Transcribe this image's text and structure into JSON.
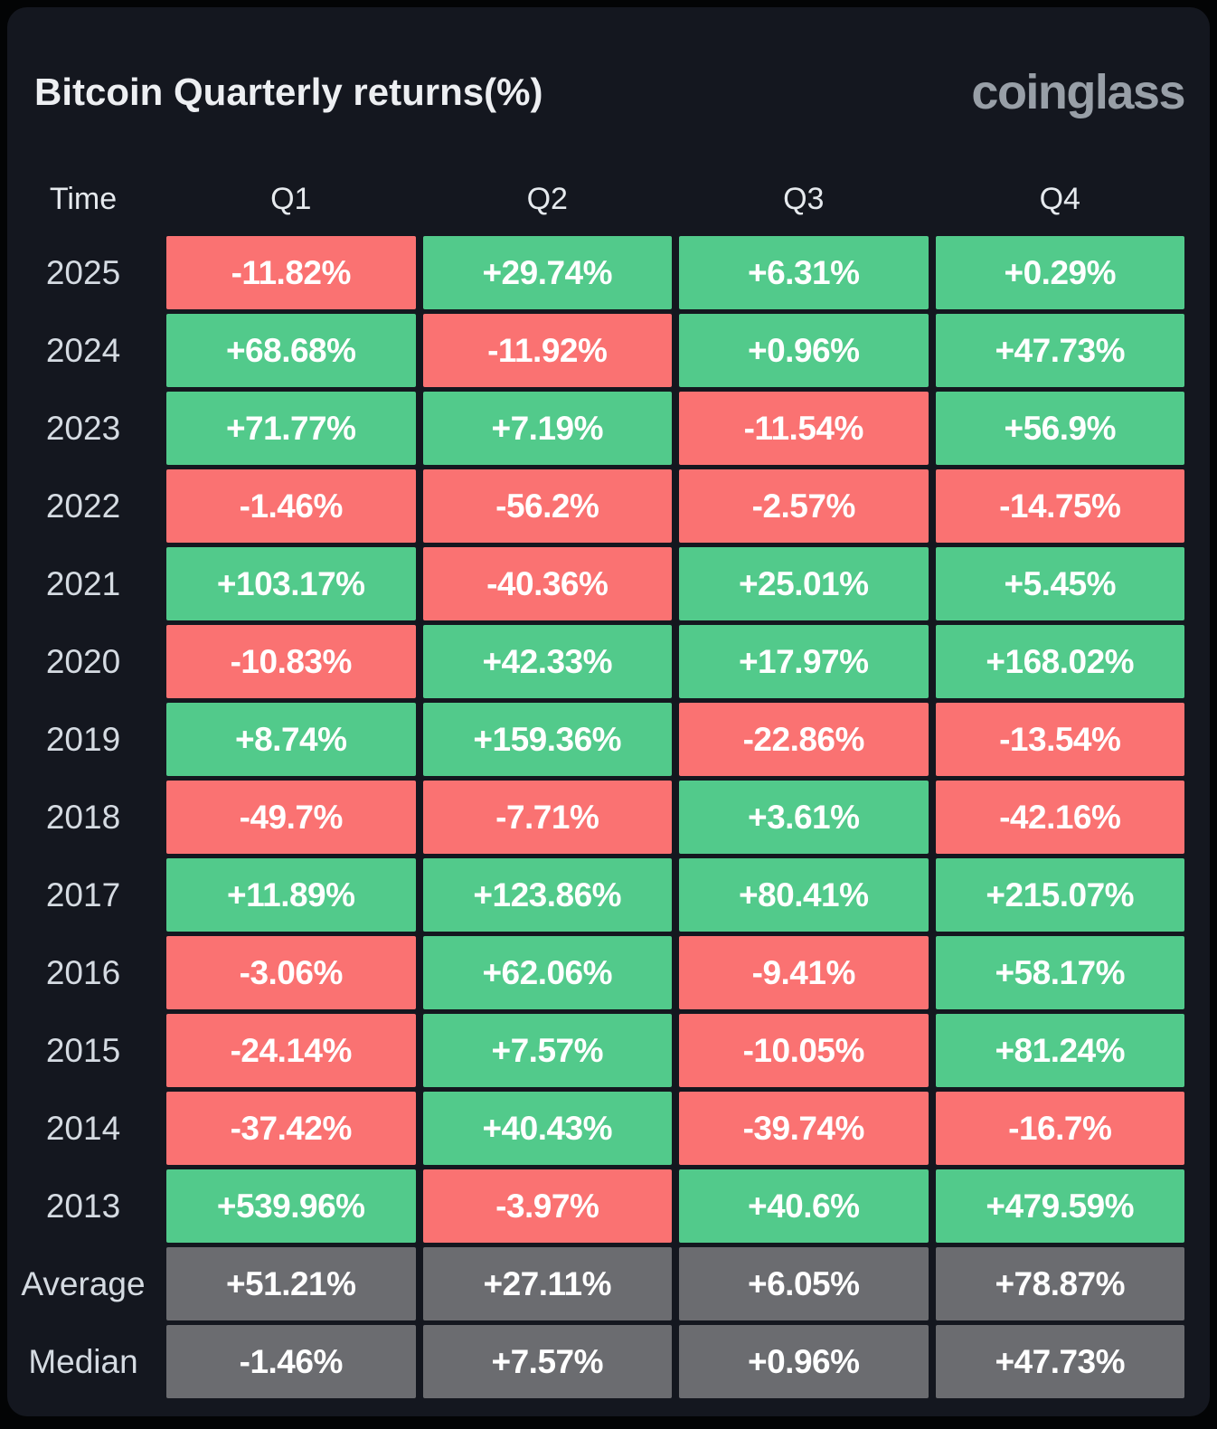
{
  "header": {
    "title": "Bitcoin Quarterly returns(%)",
    "logo": "coinglass"
  },
  "table": {
    "columns": [
      "Time",
      "Q1",
      "Q2",
      "Q3",
      "Q4"
    ],
    "rows": [
      {
        "label": "2025",
        "type": "year",
        "values": [
          "-11.82%",
          "+29.74%",
          "+6.31%",
          "+0.29%"
        ]
      },
      {
        "label": "2024",
        "type": "year",
        "values": [
          "+68.68%",
          "-11.92%",
          "+0.96%",
          "+47.73%"
        ]
      },
      {
        "label": "2023",
        "type": "year",
        "values": [
          "+71.77%",
          "+7.19%",
          "-11.54%",
          "+56.9%"
        ]
      },
      {
        "label": "2022",
        "type": "year",
        "values": [
          "-1.46%",
          "-56.2%",
          "-2.57%",
          "-14.75%"
        ]
      },
      {
        "label": "2021",
        "type": "year",
        "values": [
          "+103.17%",
          "-40.36%",
          "+25.01%",
          "+5.45%"
        ]
      },
      {
        "label": "2020",
        "type": "year",
        "values": [
          "-10.83%",
          "+42.33%",
          "+17.97%",
          "+168.02%"
        ]
      },
      {
        "label": "2019",
        "type": "year",
        "values": [
          "+8.74%",
          "+159.36%",
          "-22.86%",
          "-13.54%"
        ]
      },
      {
        "label": "2018",
        "type": "year",
        "values": [
          "-49.7%",
          "-7.71%",
          "+3.61%",
          "-42.16%"
        ]
      },
      {
        "label": "2017",
        "type": "year",
        "values": [
          "+11.89%",
          "+123.86%",
          "+80.41%",
          "+215.07%"
        ]
      },
      {
        "label": "2016",
        "type": "year",
        "values": [
          "-3.06%",
          "+62.06%",
          "-9.41%",
          "+58.17%"
        ]
      },
      {
        "label": "2015",
        "type": "year",
        "values": [
          "-24.14%",
          "+7.57%",
          "-10.05%",
          "+81.24%"
        ]
      },
      {
        "label": "2014",
        "type": "year",
        "values": [
          "-37.42%",
          "+40.43%",
          "-39.74%",
          "-16.7%"
        ]
      },
      {
        "label": "2013",
        "type": "year",
        "values": [
          "+539.96%",
          "-3.97%",
          "+40.6%",
          "+479.59%"
        ]
      },
      {
        "label": "Average",
        "type": "summary",
        "values": [
          "+51.21%",
          "+27.11%",
          "+6.05%",
          "+78.87%"
        ]
      },
      {
        "label": "Median",
        "type": "summary",
        "values": [
          "-1.46%",
          "+7.57%",
          "+0.96%",
          "+47.73%"
        ]
      }
    ]
  },
  "colors": {
    "positive": "#52ca8b",
    "negative": "#fa7272",
    "summary": "#6b6c70",
    "card_bg": "#14171f",
    "page_bg": "#030405",
    "title_color": "#edeff2",
    "logo_color": "#989fa7",
    "header_text": "#e6eaee",
    "label_text": "#d5dbe2",
    "cell_text": "#ffffff"
  },
  "chart_data": {
    "type": "heatmap",
    "title": "Bitcoin Quarterly returns(%)",
    "source_label": "coinglass",
    "columns": [
      "Q1",
      "Q2",
      "Q3",
      "Q4"
    ],
    "rows": [
      "2025",
      "2024",
      "2023",
      "2022",
      "2021",
      "2020",
      "2019",
      "2018",
      "2017",
      "2016",
      "2015",
      "2014",
      "2013",
      "Average",
      "Median"
    ],
    "values": [
      [
        -11.82,
        29.74,
        6.31,
        0.29
      ],
      [
        68.68,
        -11.92,
        0.96,
        47.73
      ],
      [
        71.77,
        7.19,
        -11.54,
        56.9
      ],
      [
        -1.46,
        -56.2,
        -2.57,
        -14.75
      ],
      [
        103.17,
        -40.36,
        25.01,
        5.45
      ],
      [
        -10.83,
        42.33,
        17.97,
        168.02
      ],
      [
        8.74,
        159.36,
        -22.86,
        -13.54
      ],
      [
        -49.7,
        -7.71,
        3.61,
        -42.16
      ],
      [
        11.89,
        123.86,
        80.41,
        215.07
      ],
      [
        -3.06,
        62.06,
        -9.41,
        58.17
      ],
      [
        -24.14,
        7.57,
        -10.05,
        81.24
      ],
      [
        -37.42,
        40.43,
        -39.74,
        -16.7
      ],
      [
        539.96,
        -3.97,
        40.6,
        479.59
      ],
      [
        51.21,
        27.11,
        6.05,
        78.87
      ],
      [
        -1.46,
        7.57,
        0.96,
        47.73
      ]
    ],
    "unit": "%",
    "legend": "green = positive quarterly return, red = negative quarterly return, gray = summary rows (Average / Median)"
  }
}
